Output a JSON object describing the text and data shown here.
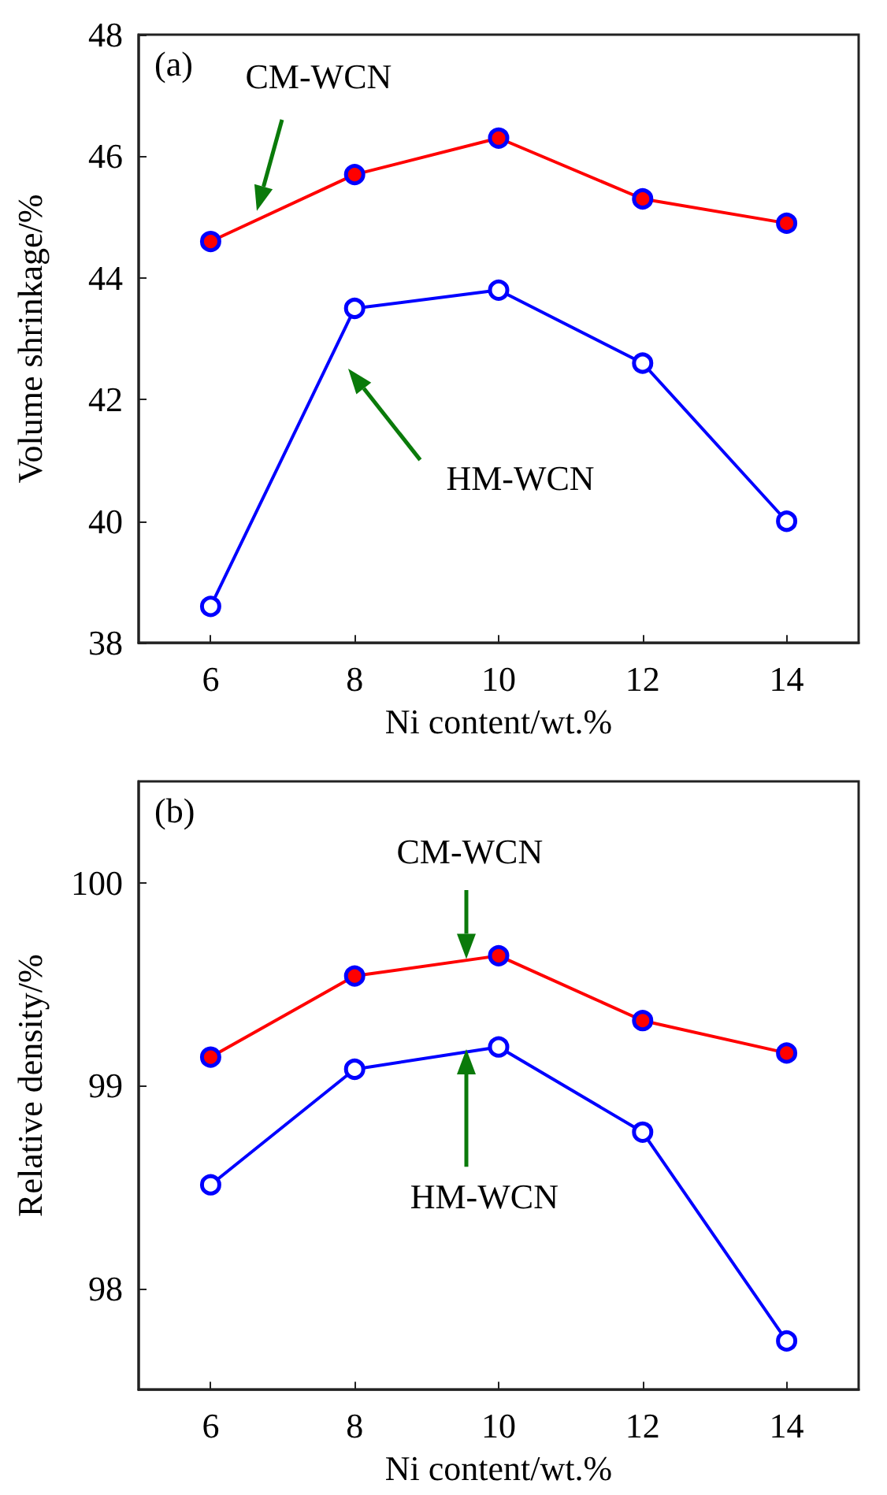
{
  "chart_data": [
    {
      "type": "line",
      "x": [
        6,
        8,
        10,
        12,
        14
      ],
      "xlabel": "Ni content/wt.%",
      "ylabel": "Volume shrinkage/%",
      "xlim": [
        5,
        15
      ],
      "xticks": [
        6,
        8,
        10,
        12,
        14
      ],
      "ylim": [
        38,
        48
      ],
      "yticks": [
        38,
        40,
        42,
        44,
        46,
        48
      ],
      "grid": false,
      "legend": false,
      "marker": "circle",
      "line_style": "solid",
      "annotations": [
        "(a)"
      ],
      "series": [
        {
          "name": "CM-WCN",
          "color": "#ff0000",
          "values": [
            44.6,
            45.7,
            46.3,
            45.3,
            44.9
          ]
        },
        {
          "name": "HM-WCN",
          "color": "#0000ff",
          "values": [
            38.6,
            43.5,
            43.8,
            42.6,
            40.0
          ]
        }
      ]
    },
    {
      "type": "line",
      "x": [
        6,
        8,
        10,
        12,
        14
      ],
      "xlabel": "Ni content/wt.%",
      "ylabel": "Relative density/%",
      "xlim": [
        5,
        15
      ],
      "xticks": [
        6,
        8,
        10,
        12,
        14
      ],
      "ylim": [
        97.5,
        100.5
      ],
      "yticks": [
        98,
        99,
        100
      ],
      "grid": false,
      "legend": false,
      "marker": "circle",
      "line_style": "solid",
      "annotations": [
        "(b)"
      ],
      "series": [
        {
          "name": "CM-WCN",
          "color": "#ff0000",
          "values": [
            99.14,
            99.54,
            99.64,
            99.32,
            99.16
          ]
        },
        {
          "name": "HM-WCN",
          "color": "#0000ff",
          "values": [
            98.51,
            99.08,
            99.19,
            98.77,
            97.74
          ]
        }
      ]
    }
  ]
}
